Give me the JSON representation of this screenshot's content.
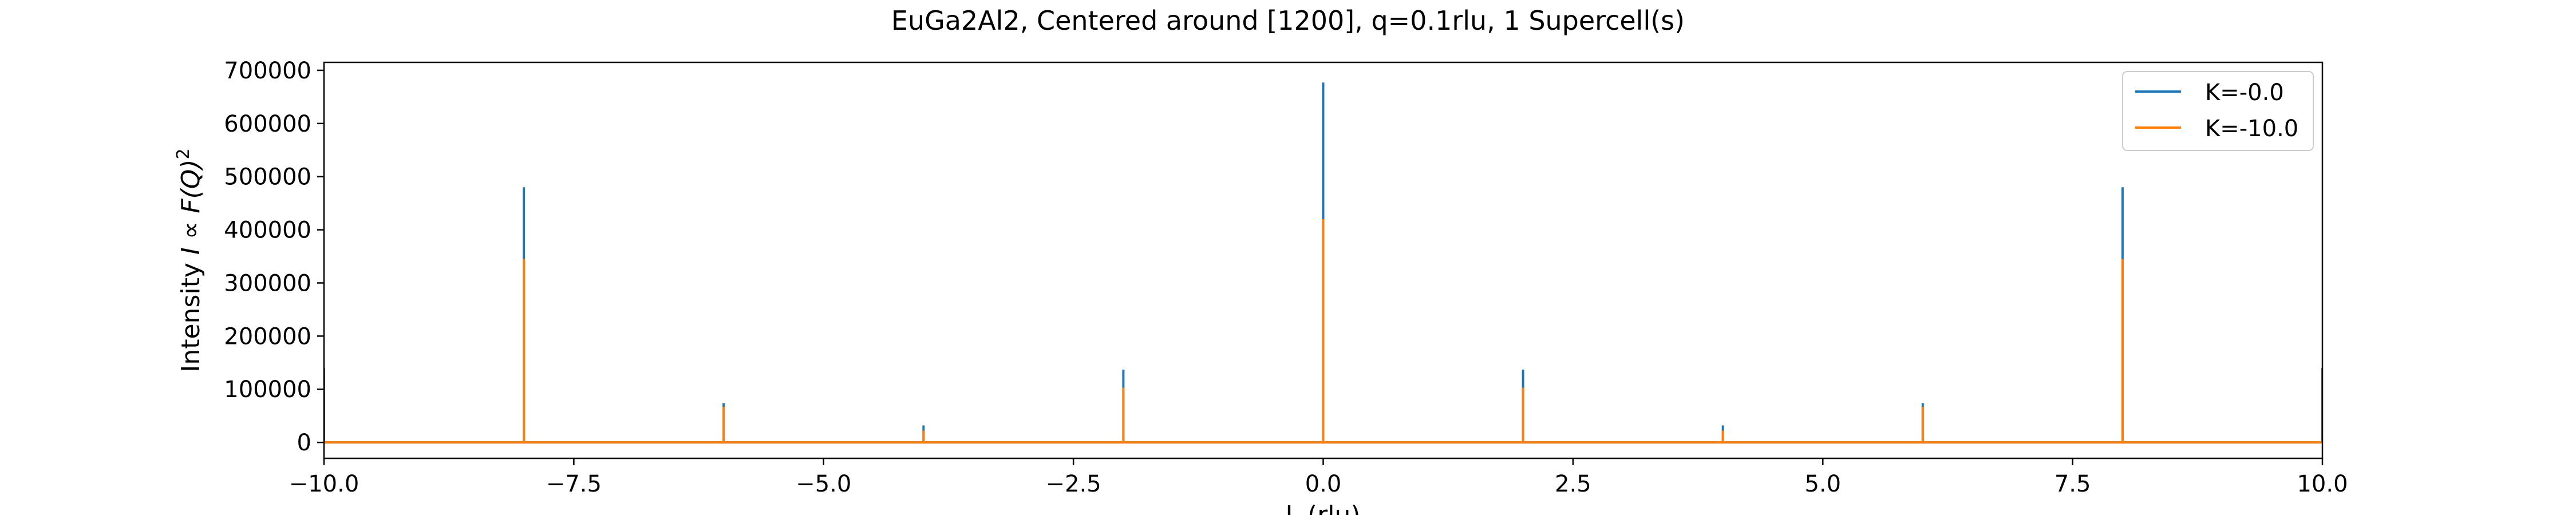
{
  "chart_data": {
    "type": "line",
    "title": "EuGa2Al2, Centered around [1200], q=0.1rlu, 1 Supercell(s)",
    "xlabel": "L (rlu)",
    "ylabel_prefix": "Intensity ",
    "ylabel_math": "I ∝ F(Q)",
    "ylabel_sup": "2",
    "xlim": [
      -10,
      10
    ],
    "ylim": [
      -30000,
      715000
    ],
    "xticks": [
      -10,
      -7.5,
      -5,
      -2.5,
      0,
      2.5,
      5,
      7.5,
      10
    ],
    "xtick_labels": [
      "−10.0",
      "−7.5",
      "−5.0",
      "−2.5",
      "0.0",
      "2.5",
      "5.0",
      "7.5",
      "10.0"
    ],
    "yticks": [
      0,
      100000,
      200000,
      300000,
      400000,
      500000,
      600000,
      700000
    ],
    "ytick_labels": [
      "0",
      "100000",
      "200000",
      "300000",
      "400000",
      "500000",
      "600000",
      "700000"
    ],
    "grid": false,
    "legend_position": "top-right",
    "series": [
      {
        "name": "K=-0.0",
        "color": "#1f77b4",
        "baseline": 0,
        "peaks": [
          {
            "x": -10,
            "y": 140000
          },
          {
            "x": -8,
            "y": 480000
          },
          {
            "x": -6,
            "y": 74000
          },
          {
            "x": -4,
            "y": 32000
          },
          {
            "x": -2,
            "y": 137000
          },
          {
            "x": 0,
            "y": 677000
          },
          {
            "x": 2,
            "y": 137000
          },
          {
            "x": 4,
            "y": 32000
          },
          {
            "x": 6,
            "y": 74000
          },
          {
            "x": 8,
            "y": 480000
          },
          {
            "x": 10,
            "y": 140000
          }
        ]
      },
      {
        "name": "K=-10.0",
        "color": "#ff7f0e",
        "baseline": 0,
        "peaks": [
          {
            "x": -8,
            "y": 345000
          },
          {
            "x": -6,
            "y": 67000
          },
          {
            "x": -4,
            "y": 22000
          },
          {
            "x": -2,
            "y": 103000
          },
          {
            "x": 0,
            "y": 420000
          },
          {
            "x": 2,
            "y": 103000
          },
          {
            "x": 4,
            "y": 22000
          },
          {
            "x": 6,
            "y": 67000
          },
          {
            "x": 8,
            "y": 345000
          }
        ]
      }
    ]
  }
}
